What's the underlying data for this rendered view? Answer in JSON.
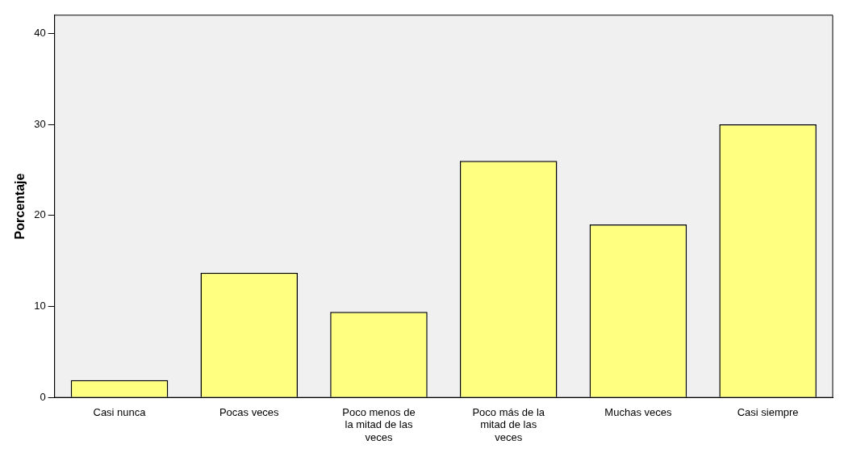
{
  "chart_data": {
    "type": "bar",
    "ylabel": "Porcentaje",
    "categories": [
      "Casi nunca",
      "Pocas veces",
      "Poco menos de la mitad de las veces",
      "Poco más de la mitad de las veces",
      "Muchas veces",
      "Casi siempre"
    ],
    "values": [
      1.9,
      13.7,
      9.4,
      26.0,
      19.0,
      30.0
    ],
    "color": "#ffff80",
    "ylim": [
      0,
      42
    ],
    "yticks": [
      0,
      10,
      20,
      30,
      40
    ],
    "grid": false,
    "legend": false
  }
}
